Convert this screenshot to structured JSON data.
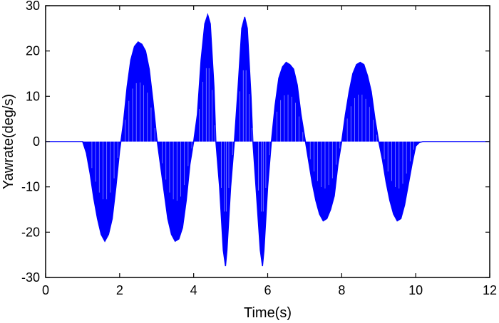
{
  "chart_data": {
    "type": "line",
    "title": "",
    "xlabel": "Time(s)",
    "ylabel": "Yawrate(deg/s)",
    "xlim": [
      0,
      12
    ],
    "ylim": [
      -30,
      30
    ],
    "xticks": [
      0,
      2,
      4,
      6,
      8,
      10,
      12
    ],
    "yticks": [
      -30,
      -20,
      -10,
      0,
      10,
      20,
      30
    ],
    "xtick_labels": [
      "0",
      "2",
      "4",
      "6",
      "8",
      "10",
      "12"
    ],
    "ytick_labels": [
      "-30",
      "-20",
      "-10",
      "0",
      "10",
      "20",
      "30"
    ],
    "grid": false,
    "color": "#0000ff",
    "series": [
      {
        "style": "oscillating envelope (filled between 0 and the curve)",
        "x": [
          0,
          1.0,
          1.1,
          1.2,
          1.3,
          1.4,
          1.5,
          1.6,
          1.7,
          1.8,
          1.9,
          2.0,
          2.1,
          2.2,
          2.3,
          2.4,
          2.5,
          2.6,
          2.7,
          2.8,
          2.9,
          3.0,
          3.1,
          3.2,
          3.3,
          3.4,
          3.5,
          3.6,
          3.7,
          3.8,
          3.9,
          4.0,
          4.1,
          4.2,
          4.3,
          4.38,
          4.45,
          4.55,
          4.6,
          4.7,
          4.8,
          4.86,
          4.9,
          5.0,
          5.1,
          5.2,
          5.3,
          5.38,
          5.45,
          5.55,
          5.6,
          5.7,
          5.8,
          5.86,
          5.9,
          6.0,
          6.1,
          6.2,
          6.3,
          6.4,
          6.5,
          6.6,
          6.7,
          6.8,
          6.9,
          7.0,
          7.1,
          7.2,
          7.3,
          7.4,
          7.5,
          7.6,
          7.7,
          7.8,
          7.9,
          8.0,
          8.1,
          8.2,
          8.3,
          8.4,
          8.5,
          8.6,
          8.7,
          8.8,
          8.9,
          9.0,
          9.1,
          9.2,
          9.3,
          9.4,
          9.5,
          9.6,
          9.7,
          9.8,
          9.9,
          10.0,
          10.1,
          10.2,
          12.0
        ],
        "y": [
          0,
          0,
          -2.5,
          -7,
          -12.5,
          -17,
          -20.5,
          -22,
          -20.5,
          -17,
          -10,
          -2,
          4,
          12,
          18,
          21,
          22,
          21.5,
          20,
          16,
          9,
          1,
          -5,
          -11,
          -17,
          -20.5,
          -22,
          -21.5,
          -19,
          -13,
          -5,
          0,
          6,
          18,
          26,
          28,
          26,
          12,
          0,
          -10,
          -24,
          -27.5,
          -24,
          -10,
          0,
          12,
          25,
          27.5,
          25,
          10,
          0,
          -12,
          -24,
          -27.5,
          -24,
          -10,
          0,
          8,
          14,
          16.5,
          17.5,
          17,
          16,
          12.5,
          6,
          1,
          -4,
          -9,
          -13,
          -16,
          -17.5,
          -17,
          -15,
          -12,
          -5,
          0,
          6,
          11,
          15,
          17,
          17.5,
          17,
          14.5,
          11,
          5,
          0,
          -4,
          -9,
          -13,
          -16,
          -17.5,
          -17,
          -14,
          -9.5,
          -5,
          -1,
          -0.2,
          0,
          0
        ]
      }
    ]
  }
}
